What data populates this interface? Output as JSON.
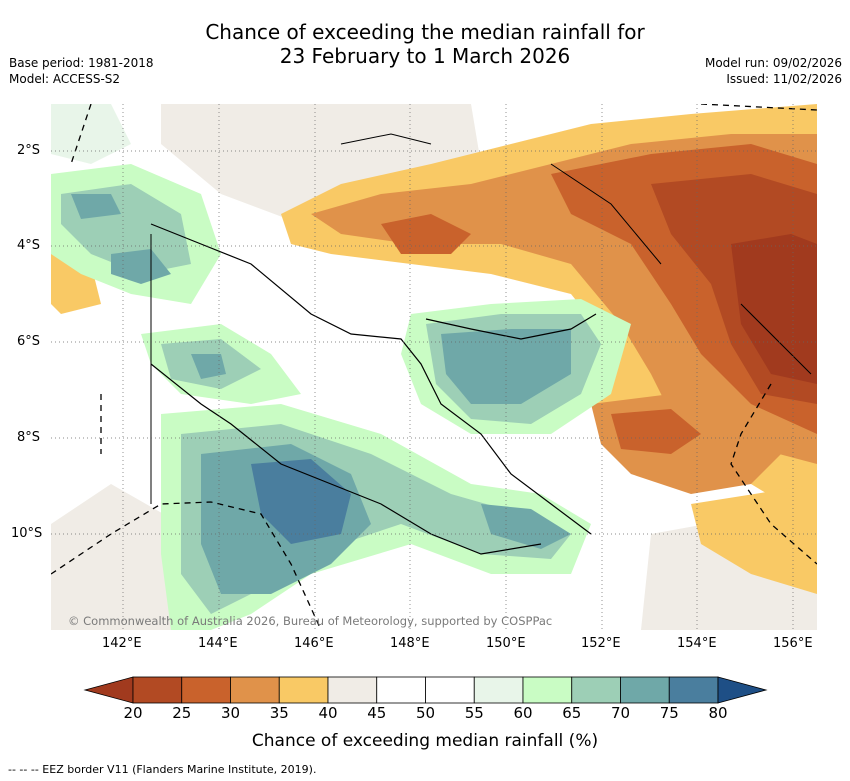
{
  "title": {
    "line1": "Chance of exceeding the median rainfall for",
    "line2": "23 February to 1 March 2026"
  },
  "meta": {
    "base_period": "Base period: 1981-2018",
    "model": "Model: ACCESS-S2",
    "model_run": "Model run: 09/02/2026",
    "issued": "Issued: 11/02/2026"
  },
  "map": {
    "lat_labels": [
      "2°S",
      "4°S",
      "6°S",
      "8°S",
      "10°S"
    ],
    "lon_labels": [
      "142°E",
      "144°E",
      "146°E",
      "148°E",
      "150°E",
      "152°E",
      "154°E",
      "156°E"
    ],
    "copyright": "© Commonwealth of Australia 2026, Bureau of Meteorology, supported by COSPPac"
  },
  "colorbar": {
    "ticks": [
      "20",
      "25",
      "30",
      "35",
      "40",
      "45",
      "50",
      "55",
      "60",
      "65",
      "70",
      "75",
      "80"
    ],
    "colors": [
      "#a13a1e",
      "#b24a23",
      "#c9622c",
      "#e0924a",
      "#f9c965",
      "#f0ece6",
      "#ffffff",
      "#ffffff",
      "#e8f5e9",
      "#c9fcc4",
      "#9dcfb6",
      "#6fa8a8",
      "#4a7e9e",
      "#1e4f86"
    ],
    "title": "Chance of exceeding median rainfall (%)"
  },
  "legend": {
    "eez": "--  --  -- EEZ border V11 (Flanders Marine Institute, 2019)."
  }
}
